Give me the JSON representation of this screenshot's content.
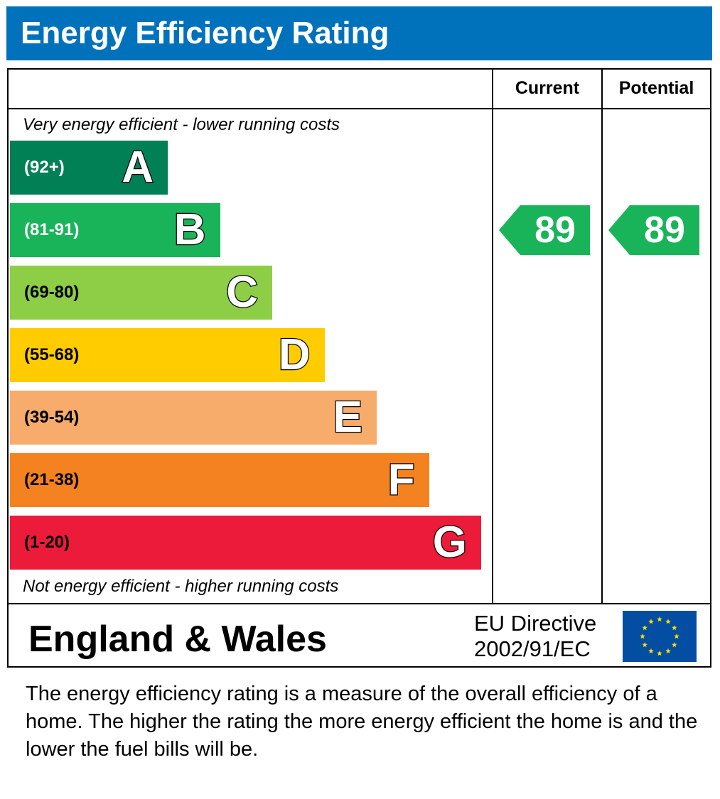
{
  "title": "Energy Efficiency Rating",
  "columns": {
    "current": "Current",
    "potential": "Potential"
  },
  "top_note": "Very energy efficient - lower running costs",
  "bottom_note": "Not energy efficient - higher running costs",
  "chart_data": {
    "type": "bar",
    "categories": [
      "A",
      "B",
      "C",
      "D",
      "E",
      "F",
      "G"
    ],
    "bands": [
      {
        "letter": "A",
        "range": "(92+)",
        "color": "#008054",
        "text_color": "#ffffff"
      },
      {
        "letter": "B",
        "range": "(81-91)",
        "color": "#19b459",
        "text_color": "#ffffff"
      },
      {
        "letter": "C",
        "range": "(69-80)",
        "color": "#8dce46",
        "text_color": "#000000"
      },
      {
        "letter": "D",
        "range": "(55-68)",
        "color": "#ffcc00",
        "text_color": "#000000"
      },
      {
        "letter": "E",
        "range": "(39-54)",
        "color": "#f7ac6b",
        "text_color": "#000000"
      },
      {
        "letter": "F",
        "range": "(21-38)",
        "color": "#f48221",
        "text_color": "#000000"
      },
      {
        "letter": "G",
        "range": "(1-20)",
        "color": "#ed1b3a",
        "text_color": "#000000"
      }
    ],
    "current": {
      "value": "89",
      "band": "B",
      "color": "#19b459"
    },
    "potential": {
      "value": "89",
      "band": "B",
      "color": "#19b459"
    }
  },
  "region": "England & Wales",
  "directive_line1": "EU Directive",
  "directive_line2": "2002/91/EC",
  "flag_icon": "eu-flag-icon",
  "footer_text": "The energy efficiency rating is a measure of the overall efficiency of a home.  The higher the rating the more energy efficient the home is and the lower the fuel bills will be."
}
